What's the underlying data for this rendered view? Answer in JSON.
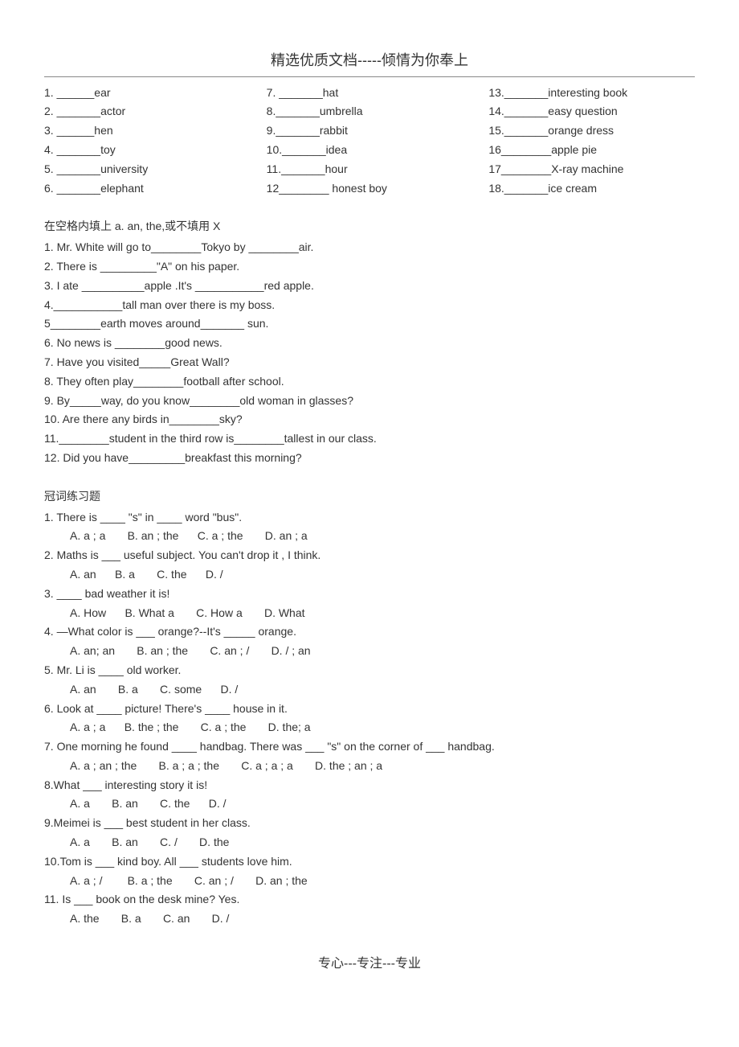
{
  "header": "精选优质文档-----倾情为你奉上",
  "footer": "专心---专注---专业",
  "section1": {
    "col1": [
      "1. ______ear",
      "2. _______actor",
      "3. ______hen",
      "4. _______toy",
      "5. _______university",
      "6. _______elephant"
    ],
    "col2": [
      "7. _______hat",
      "8._______umbrella",
      "9._______rabbit",
      "10._______idea",
      "11._______hour",
      "12________ honest boy"
    ],
    "col3": [
      "13._______interesting book",
      "14._______easy question",
      "15._______orange dress",
      "16________apple pie",
      "17________X-ray machine",
      "18._______ice cream"
    ]
  },
  "section2": {
    "title": "在空格内填上 a. an, the,或不填用 X",
    "items": [
      "1. Mr. White will go to________Tokyo by ________air.",
      "2. There is _________\"A\" on his paper.",
      "3. I ate __________apple .It's ___________red apple.",
      "4.___________tall man over there is my boss.",
      "5________earth moves around_______ sun.",
      "6. No news is ________good news.",
      "7. Have you visited_____Great Wall?",
      "8. They often play________football after school.",
      "9. By_____way, do you know________old woman in glasses?",
      "10. Are there any birds in________sky?",
      "11.________student in the third row is________tallest in our class.",
      "12. Did you have_________breakfast this morning?"
    ]
  },
  "section3": {
    "title": "冠词练习题",
    "items": [
      {
        "q": "1. There is ____ \"s\" in ____ word \"bus\".",
        "opts": "A. a ; a       B. an ; the      C. a ; the       D. an ; a"
      },
      {
        "q": "2. Maths is ___ useful subject. You can't drop it , I think.",
        "opts": "A. an      B. a       C. the      D. /"
      },
      {
        "q": "3. ____ bad weather it is!",
        "opts": "A. How      B. What a       C. How a       D. What"
      },
      {
        "q": "4. —What color is ___ orange?--It's _____ orange.",
        "opts": "A. an; an       B. an ; the       C. an ; /       D. / ; an"
      },
      {
        "q": "5. Mr. Li is ____ old worker.",
        "opts": "A. an       B. a       C. some      D. /"
      },
      {
        "q": "6. Look at ____ picture! There's ____ house in it.",
        "opts": "A. a ; a      B. the ; the       C. a ; the       D. the; a"
      },
      {
        "q": "7. One morning he found ____ handbag. There was ___ \"s\" on the corner of ___ handbag.",
        "opts": "A. a ; an ; the       B. a ; a ; the       C. a ; a ; a       D. the ; an ; a"
      },
      {
        "q": "8.What ___ interesting story it is!",
        "opts": "A. a       B. an       C. the      D. /"
      },
      {
        "q": "9.Meimei is ___ best student in her class.",
        "opts": "A. a       B. an       C. /       D. the"
      },
      {
        "q": "10.Tom is ___ kind boy. All ___ students love him.",
        "opts": "A. a ; /        B. a ; the       C. an ; /       D. an ; the"
      },
      {
        "q": "11. Is ___ book on the desk mine? Yes.",
        "opts": "A. the       B. a       C. an       D. /"
      }
    ]
  }
}
